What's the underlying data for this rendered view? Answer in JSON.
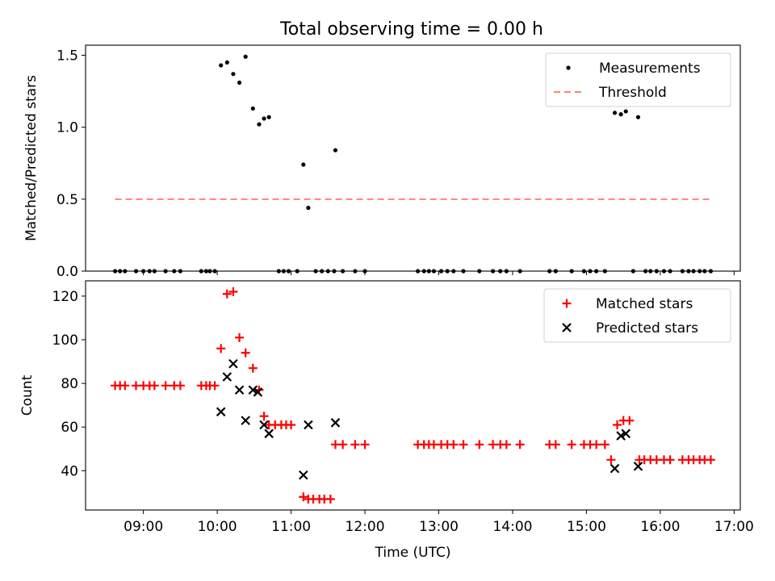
{
  "figure": {
    "title": "Total observing time = 0.00 h"
  },
  "chart_data": [
    {
      "type": "scatter",
      "ylabel": "Matched/Predicted stars",
      "xlim": [
        "08:13",
        "17:05"
      ],
      "ylim": [
        0,
        1.57
      ],
      "yticks": [
        0.0,
        0.5,
        1.0,
        1.5
      ],
      "ytick_labels": [
        "0.0",
        "0.5",
        "1.0",
        "1.5"
      ],
      "legend_position": "upper-right",
      "series": [
        {
          "name": "Measurements",
          "color": "#000000",
          "marker": "dot",
          "points": [
            [
              "08:37",
              0
            ],
            [
              "08:41",
              0
            ],
            [
              "08:45",
              0
            ],
            [
              "08:54",
              0
            ],
            [
              "09:00",
              0
            ],
            [
              "09:05",
              0
            ],
            [
              "09:09",
              0
            ],
            [
              "09:18",
              0
            ],
            [
              "09:25",
              0
            ],
            [
              "09:30",
              0
            ],
            [
              "09:47",
              0
            ],
            [
              "09:51",
              0
            ],
            [
              "09:54",
              0
            ],
            [
              "09:58",
              0
            ],
            [
              "10:03",
              1.43
            ],
            [
              "10:08",
              1.45
            ],
            [
              "10:13",
              1.37
            ],
            [
              "10:18",
              1.31
            ],
            [
              "10:23",
              1.49
            ],
            [
              "10:29",
              1.13
            ],
            [
              "10:34",
              1.02
            ],
            [
              "10:38",
              1.06
            ],
            [
              "10:42",
              1.07
            ],
            [
              "10:50",
              0
            ],
            [
              "10:54",
              0
            ],
            [
              "10:58",
              0
            ],
            [
              "11:05",
              0
            ],
            [
              "11:10",
              0.74
            ],
            [
              "11:14",
              0.44
            ],
            [
              "11:20",
              0
            ],
            [
              "11:25",
              0
            ],
            [
              "11:30",
              0
            ],
            [
              "11:35",
              0
            ],
            [
              "11:42",
              0
            ],
            [
              "11:52",
              0
            ],
            [
              "12:00",
              0
            ],
            [
              "11:36",
              0.84
            ],
            [
              "12:43",
              0
            ],
            [
              "12:48",
              0
            ],
            [
              "12:52",
              0
            ],
            [
              "12:56",
              0
            ],
            [
              "13:02",
              0
            ],
            [
              "13:07",
              0
            ],
            [
              "13:12",
              0
            ],
            [
              "13:20",
              0
            ],
            [
              "13:33",
              0
            ],
            [
              "13:44",
              0
            ],
            [
              "13:50",
              0
            ],
            [
              "13:55",
              0
            ],
            [
              "14:06",
              0
            ],
            [
              "14:30",
              0
            ],
            [
              "14:35",
              0
            ],
            [
              "14:48",
              0
            ],
            [
              "14:58",
              0
            ],
            [
              "15:03",
              0
            ],
            [
              "15:08",
              0
            ],
            [
              "15:15",
              0
            ],
            [
              "15:23",
              1.1
            ],
            [
              "15:28",
              1.09
            ],
            [
              "15:32",
              1.11
            ],
            [
              "15:38",
              0
            ],
            [
              "15:42",
              1.07
            ],
            [
              "15:48",
              0
            ],
            [
              "15:52",
              0
            ],
            [
              "15:57",
              0
            ],
            [
              "16:03",
              0
            ],
            [
              "16:08",
              0
            ],
            [
              "16:18",
              0
            ],
            [
              "16:23",
              0
            ],
            [
              "16:27",
              0
            ],
            [
              "16:32",
              0
            ],
            [
              "16:36",
              0
            ],
            [
              "16:41",
              0
            ]
          ]
        },
        {
          "name": "Threshold",
          "color": "#ff8080",
          "line_style": "dashed",
          "points": [
            [
              "08:37",
              0.5
            ],
            [
              "16:41",
              0.5
            ]
          ]
        }
      ]
    },
    {
      "type": "scatter",
      "xlabel": "Time (UTC)",
      "ylabel": "Count",
      "xlim": [
        "08:13",
        "17:05"
      ],
      "ylim": [
        22,
        127
      ],
      "xticks": [
        "09:00",
        "10:00",
        "11:00",
        "12:00",
        "13:00",
        "14:00",
        "15:00",
        "16:00",
        "17:00"
      ],
      "yticks": [
        40,
        60,
        80,
        100,
        120
      ],
      "ytick_labels": [
        "40",
        "60",
        "80",
        "100",
        "120"
      ],
      "legend_position": "upper-right",
      "series": [
        {
          "name": "Matched stars",
          "color": "#ff0000",
          "marker": "plus",
          "points": [
            [
              "08:37",
              79
            ],
            [
              "08:41",
              79
            ],
            [
              "08:45",
              79
            ],
            [
              "08:54",
              79
            ],
            [
              "09:00",
              79
            ],
            [
              "09:05",
              79
            ],
            [
              "09:09",
              79
            ],
            [
              "09:18",
              79
            ],
            [
              "09:25",
              79
            ],
            [
              "09:30",
              79
            ],
            [
              "09:47",
              79
            ],
            [
              "09:51",
              79
            ],
            [
              "09:54",
              79
            ],
            [
              "09:58",
              79
            ],
            [
              "10:03",
              96
            ],
            [
              "10:08",
              121
            ],
            [
              "10:13",
              122
            ],
            [
              "10:18",
              101
            ],
            [
              "10:23",
              94
            ],
            [
              "10:29",
              87
            ],
            [
              "10:34",
              77
            ],
            [
              "10:38",
              65
            ],
            [
              "10:42",
              61
            ],
            [
              "10:47",
              61
            ],
            [
              "10:52",
              61
            ],
            [
              "10:56",
              61
            ],
            [
              "11:00",
              61
            ],
            [
              "11:10",
              28
            ],
            [
              "11:14",
              27
            ],
            [
              "11:18",
              27
            ],
            [
              "11:23",
              27
            ],
            [
              "11:27",
              27
            ],
            [
              "11:32",
              27
            ],
            [
              "11:36",
              52
            ],
            [
              "11:42",
              52
            ],
            [
              "11:52",
              52
            ],
            [
              "12:00",
              52
            ],
            [
              "12:43",
              52
            ],
            [
              "12:48",
              52
            ],
            [
              "12:52",
              52
            ],
            [
              "12:56",
              52
            ],
            [
              "13:02",
              52
            ],
            [
              "13:07",
              52
            ],
            [
              "13:12",
              52
            ],
            [
              "13:20",
              52
            ],
            [
              "13:33",
              52
            ],
            [
              "13:44",
              52
            ],
            [
              "13:50",
              52
            ],
            [
              "13:55",
              52
            ],
            [
              "14:06",
              52
            ],
            [
              "14:30",
              52
            ],
            [
              "14:35",
              52
            ],
            [
              "14:48",
              52
            ],
            [
              "14:58",
              52
            ],
            [
              "15:03",
              52
            ],
            [
              "15:08",
              52
            ],
            [
              "15:15",
              52
            ],
            [
              "15:20",
              45
            ],
            [
              "15:25",
              61
            ],
            [
              "15:30",
              63
            ],
            [
              "15:35",
              63
            ],
            [
              "15:43",
              45
            ],
            [
              "15:47",
              45
            ],
            [
              "15:52",
              45
            ],
            [
              "15:57",
              45
            ],
            [
              "16:03",
              45
            ],
            [
              "16:08",
              45
            ],
            [
              "16:18",
              45
            ],
            [
              "16:23",
              45
            ],
            [
              "16:27",
              45
            ],
            [
              "16:32",
              45
            ],
            [
              "16:36",
              45
            ],
            [
              "16:41",
              45
            ]
          ]
        },
        {
          "name": "Predicted stars",
          "color": "#000000",
          "marker": "x",
          "points": [
            [
              "10:03",
              67
            ],
            [
              "10:08",
              83
            ],
            [
              "10:13",
              89
            ],
            [
              "10:18",
              77
            ],
            [
              "10:23",
              63
            ],
            [
              "10:29",
              77
            ],
            [
              "10:33",
              76
            ],
            [
              "10:38",
              61
            ],
            [
              "10:42",
              57
            ],
            [
              "11:10",
              38
            ],
            [
              "11:14",
              61
            ],
            [
              "11:36",
              62
            ],
            [
              "15:23",
              41
            ],
            [
              "15:28",
              56
            ],
            [
              "15:32",
              57
            ],
            [
              "15:42",
              42
            ]
          ]
        }
      ]
    }
  ]
}
